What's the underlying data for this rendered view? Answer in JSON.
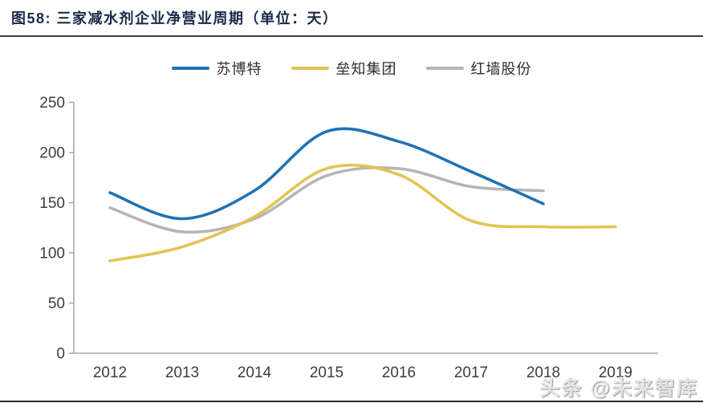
{
  "header": {
    "title": "图58:  三家减水剂企业净营业周期（单位：天）"
  },
  "watermark": "头条 @未来智库",
  "colors": {
    "title_text": "#1b2a4a",
    "axis_line": "#a3a3a3",
    "tick_text": "#3d3d3d",
    "rule_dark": "#383d47"
  },
  "chart_data": {
    "type": "line",
    "title": "三家减水剂企业净营业周期",
    "unit": "天",
    "line_style": "smooth",
    "grid": false,
    "legend_position": "top-center",
    "x_labels": [
      "2012",
      "2013",
      "2014",
      "2015",
      "2016",
      "2017",
      "2018",
      "2019"
    ],
    "y_ticks": [
      0,
      50,
      100,
      150,
      200,
      250
    ],
    "ylim": [
      0,
      250
    ],
    "xlabel": "",
    "ylabel": "",
    "series": [
      {
        "name": "苏博特",
        "color": "#2172b2",
        "x": [
          2012,
          2013,
          2014,
          2015,
          2016,
          2017,
          2018
        ],
        "values": [
          160,
          134,
          162,
          221,
          211,
          181,
          149
        ]
      },
      {
        "name": "垒知集团",
        "color": "#e3c453",
        "x": [
          2012,
          2013,
          2014,
          2015,
          2016,
          2017,
          2018,
          2019
        ],
        "values": [
          92,
          106,
          136,
          184,
          178,
          132,
          126,
          126
        ]
      },
      {
        "name": "红墙股份",
        "color": "#b5b5b5",
        "x": [
          2012,
          2013,
          2014,
          2015,
          2016,
          2017,
          2018
        ],
        "values": [
          145,
          121,
          134,
          177,
          184,
          166,
          162
        ]
      }
    ]
  }
}
